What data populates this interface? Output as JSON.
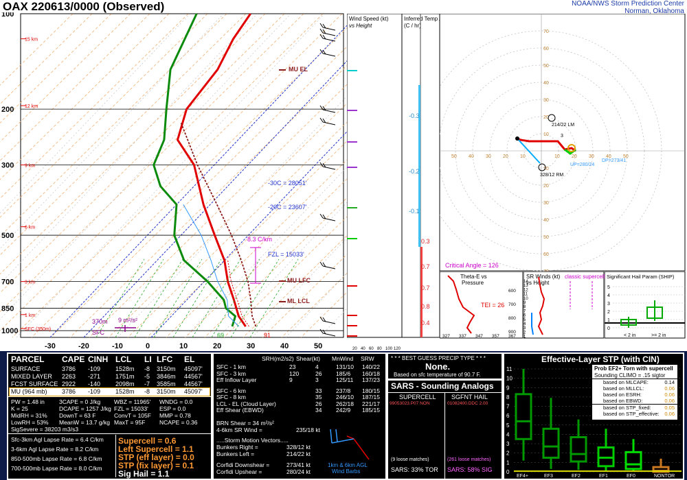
{
  "title": "OAX   220613/0000  (Observed)",
  "header": {
    "line1": "NOAA/NWS Storm Prediction Center",
    "line2": "Norman, Oklahoma"
  },
  "chart_data": [
    {
      "type": "line",
      "name": "skew-t",
      "pressure_ticks": [
        "100",
        "200",
        "300",
        "500",
        "700",
        "850",
        "1000"
      ],
      "temp_ticks": [
        "-30",
        "-20",
        "-10",
        "0",
        "10",
        "20",
        "30",
        "40",
        "50"
      ],
      "height_labels": [
        "15 km",
        "12 km",
        "9 km",
        "6 km",
        "3 km",
        "1 km",
        "SFC (350m)"
      ],
      "annotations": [
        "MU EL",
        "-30C = 28051'",
        "-20C = 23607'",
        "8.3 C/km",
        "FZL = 15033'",
        "MU LFC",
        "ML LCL",
        "370m",
        "9 m²/s²",
        "SFC",
        "69",
        "91"
      ],
      "series": [
        {
          "name": "Temperature",
          "color": "#e00000",
          "points": [
            [
              25,
              970
            ],
            [
              20,
              900
            ],
            [
              14,
              800
            ],
            [
              7,
              700
            ],
            [
              0,
              600
            ],
            [
              -10,
              500
            ],
            [
              -22,
              400
            ],
            [
              -36,
              300
            ],
            [
              -48,
              250
            ],
            [
              -54,
              200
            ],
            [
              -56,
              150
            ],
            [
              -60,
              120
            ],
            [
              -62,
              100
            ]
          ]
        },
        {
          "name": "Dewpoint",
          "color": "#0c8a0c",
          "points": [
            [
              21,
              970
            ],
            [
              19,
              900
            ],
            [
              14,
              850
            ],
            [
              11,
              800
            ],
            [
              1,
              700
            ],
            [
              -12,
              600
            ],
            [
              -22,
              500
            ],
            [
              -30,
              400
            ],
            [
              -40,
              350
            ],
            [
              -48,
              300
            ],
            [
              -52,
              250
            ],
            [
              -60,
              200
            ],
            [
              -70,
              150
            ],
            [
              -78,
              100
            ]
          ]
        }
      ]
    }
  ],
  "panels": {
    "wind_speed": {
      "title": "Wind Speed (kt)",
      "subtitle": "vs Height",
      "ticks": [
        "20",
        "40",
        "60",
        "80",
        "100",
        "120"
      ]
    },
    "temp_adv": {
      "title": "Inferred Temp Advection",
      "subtitle": "(C / hr)",
      "values": [
        "-0.3",
        "-0.2",
        "-0.1",
        "0.3",
        "0.7",
        "0.7",
        "0.8",
        "0.4"
      ]
    },
    "hodograph": {
      "ticks_x": [
        "50",
        "40",
        "30",
        "20",
        "10",
        "10",
        "20",
        "30",
        "40",
        "50"
      ],
      "ticks_y": [
        "70",
        "60",
        "50",
        "40",
        "30",
        "20",
        "10",
        "10",
        "20",
        "30",
        "40",
        "50",
        "60",
        "70"
      ],
      "labels": [
        "214/22 LM",
        "328/12 RM",
        "UP=280/24",
        "DP=273/41",
        "3",
        "Critical Angle = 126"
      ]
    },
    "theta_e": {
      "title": "Theta-E vs",
      "subtitle": "Pressure",
      "tei": "TEI = 26",
      "p_ticks": [
        "600",
        "700",
        "800",
        "900"
      ],
      "t_ticks": [
        "327",
        "337",
        "347",
        "357",
        "367"
      ]
    },
    "sr_winds": {
      "title": "SR Winds (kt)",
      "subtitle": "vs Height",
      "label": "classic supercell",
      "ticks": [
        "14",
        "13",
        "12",
        "11",
        "10",
        "9",
        "8",
        "7",
        "6",
        "5",
        "4",
        "3",
        "2",
        "1"
      ]
    },
    "ship": {
      "title": "Significant Hail Param (SHIP)",
      "ticks": [
        "5",
        "4",
        "3",
        "2",
        "1",
        "0"
      ],
      "x1": "< 2 in",
      "x2": ">= 2 in"
    }
  },
  "parcel_table": {
    "headers": [
      "PARCEL",
      "CAPE",
      "CINH",
      "LCL",
      "LI",
      "LFC",
      "EL"
    ],
    "rows": [
      [
        "SURFACE",
        "3786",
        "-109",
        "1528m",
        "-8",
        "3150m",
        "45097'"
      ],
      [
        "MIXED LAYER",
        "2263",
        "-271",
        "1751m",
        "-5",
        "3846m",
        "44567'"
      ],
      [
        "FCST SURFACE",
        "2922",
        "-140",
        "2098m",
        "-7",
        "3585m",
        "44567'"
      ],
      [
        "MU  (964 mb)",
        "3786",
        "-109",
        "1528m",
        "-8",
        "3150m",
        "45097'"
      ]
    ],
    "indices": [
      [
        "PW = 1.48  in",
        "3CAPE = 0 J/kg",
        "WBZ = 11965'",
        "WNDG = 0.0"
      ],
      [
        "K = 25",
        "DCAPE = 1257 J/kg",
        "FZL = 15033'",
        "ESP = 0.0"
      ],
      [
        "MidRH = 31%",
        "DownT = 63 F",
        "ConvT = 105F",
        "MMP = 0.78"
      ],
      [
        "LowRH = 53%",
        "MeanW = 13.7 g/kg",
        "MaxT = 95F",
        "NCAPE = 0.36"
      ]
    ],
    "sigsevere": "SigSevere = 38203 m3/s3",
    "lapse": [
      "Sfc-3km Agl Lapse Rate = 6.4 C/km",
      "3-6km Agl Lapse Rate = 8.2 C/km",
      "850-500mb Lapse Rate = 6.8 C/km",
      "700-500mb Lapse Rate = 8.0 C/km"
    ],
    "composites": [
      "Supercell = 0.6",
      "Left Supercell = 1.1",
      "STP (eff layer) = 0.0",
      "STP (fix layer) = 0.1",
      "Sig Hail = 1.1"
    ]
  },
  "kinematics": {
    "headers": [
      "SRH(m2/s2)",
      "Shear(kt)",
      "MnWind",
      "SRW"
    ],
    "rows": [
      [
        "SFC - 1 km",
        "23",
        "4",
        "131/10",
        "140/22"
      ],
      [
        "SFC - 3 km",
        "120",
        "26",
        "185/6",
        "160/18"
      ],
      [
        "Eff Inflow Layer",
        "9",
        "3",
        "125/11",
        "137/23"
      ],
      [
        "SFC - 6 km",
        "",
        "33",
        "237/8",
        "180/15"
      ],
      [
        "SFC - 8 km",
        "",
        "35",
        "246/10",
        "187/15"
      ],
      [
        "LCL - EL (Cloud Layer)",
        "",
        "26",
        "262/18",
        "221/17"
      ],
      [
        "Eff Shear (EBWD)",
        "",
        "34",
        "242/9",
        "185/15"
      ]
    ],
    "brn": "BRN Shear = 34 m²/s²",
    "srwind": "4-6km SR Wind =",
    "srwind_val": "235/18 kt",
    "storm_hd": ".....Storm Motion Vectors.....",
    "motions": [
      [
        "Bunkers Right =",
        "328/12 kt"
      ],
      [
        "Bunkers Left =",
        "214/22 kt"
      ],
      [
        "Corfidi Downshear =",
        "273/41 kt"
      ],
      [
        "Corfidi Upshear =",
        "280/24 kt"
      ]
    ],
    "barbs_label1": "1km & 6km AGL",
    "barbs_label2": "Wind Barbs"
  },
  "precip": {
    "title": "* * * BEST GUESS PRECIP TYPE * * *",
    "value": "None.",
    "note": "Based on sfc temperature of 90.7 F."
  },
  "sars": {
    "title": "SARS - Sounding Analogs",
    "col1": "SUPERCELL",
    "col2": "SGFNT HAIL",
    "sup_match": "99053023.P07   NON",
    "hail_match": "01082400.DDC  2.00",
    "sup_count": "(9 loose matches)",
    "hail_count": "(261 loose matches)",
    "sup_tor": "SARS:  33% TOR",
    "hail_sig": "SARS:  58% SIG"
  },
  "stp": {
    "title": "Effective-Layer STP (with CIN)",
    "legend_title": "Prob EF2+ Torn with supercell",
    "legend_sub": "Sounding CLIMO = .15 sigtor",
    "probs": [
      [
        "based on MLCAPE:",
        "0.14"
      ],
      [
        "based on MLLCL:",
        "0.06"
      ],
      [
        "based on ESRH:",
        "0.06"
      ],
      [
        "based on EBWD:",
        "0.06"
      ],
      [
        "based on STP_fixed:",
        "0.05"
      ],
      [
        "based on STP_effective:",
        "0.06"
      ]
    ],
    "y_ticks": [
      "11",
      "10",
      "9",
      "8",
      "7",
      "6",
      "5",
      "4",
      "3",
      "2",
      "1",
      "0"
    ],
    "categories": [
      "EF4+",
      "EF3",
      "EF2",
      "EF1",
      "EF0",
      "NONTOR"
    ],
    "boxes": [
      {
        "min": 1.2,
        "q1": 3.5,
        "med": 5.4,
        "q3": 8.3,
        "max": 11
      },
      {
        "min": 0.3,
        "q1": 1.5,
        "med": 2.7,
        "q3": 4.6,
        "max": 7.9
      },
      {
        "min": 0.2,
        "q1": 1.1,
        "med": 1.9,
        "q3": 3.7,
        "max": 5.6
      },
      {
        "min": 0,
        "q1": 0.6,
        "med": 1.5,
        "q3": 2.6,
        "max": 4.6
      },
      {
        "min": 0,
        "q1": 0.3,
        "med": 0.8,
        "q3": 2.1,
        "max": 3.5
      },
      {
        "min": 0,
        "q1": 0,
        "med": 0.1,
        "q3": 0.5,
        "max": 1.4
      }
    ]
  }
}
